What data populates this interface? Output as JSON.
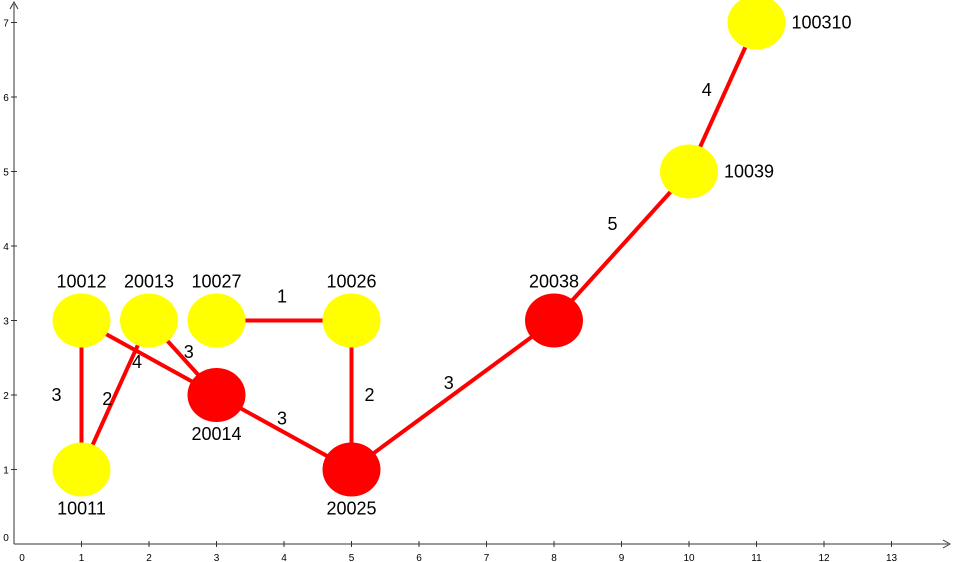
{
  "axes": {
    "x_ticks": [
      "0",
      "1",
      "2",
      "3",
      "4",
      "5",
      "6",
      "7",
      "8",
      "9",
      "10",
      "11",
      "12",
      "13"
    ],
    "y_ticks": [
      "0",
      "1",
      "2",
      "3",
      "4",
      "5",
      "6",
      "7"
    ]
  },
  "colors": {
    "edge": "#ff0000",
    "axis": "#333333",
    "yellow_node": "#ffff00",
    "red_node": "#ff0000"
  },
  "graph": {
    "nodes": [
      {
        "id": "10012",
        "label": "10012",
        "x": 1,
        "y": 3,
        "color": "yellow",
        "label_pos": "above"
      },
      {
        "id": "20013",
        "label": "20013",
        "x": 2,
        "y": 3,
        "color": "yellow",
        "label_pos": "above"
      },
      {
        "id": "10027",
        "label": "10027",
        "x": 3,
        "y": 3,
        "color": "yellow",
        "label_pos": "above"
      },
      {
        "id": "10026",
        "label": "10026",
        "x": 5,
        "y": 3,
        "color": "yellow",
        "label_pos": "above"
      },
      {
        "id": "20014",
        "label": "20014",
        "x": 3,
        "y": 2,
        "color": "red",
        "label_pos": "below"
      },
      {
        "id": "10011",
        "label": "10011",
        "x": 1,
        "y": 1,
        "color": "yellow",
        "label_pos": "below"
      },
      {
        "id": "20025",
        "label": "20025",
        "x": 5,
        "y": 1,
        "color": "red",
        "label_pos": "below"
      },
      {
        "id": "20038",
        "label": "20038",
        "x": 8,
        "y": 3,
        "color": "red",
        "label_pos": "above"
      },
      {
        "id": "10039",
        "label": "10039",
        "x": 10,
        "y": 5,
        "color": "yellow",
        "label_pos": "right"
      },
      {
        "id": "100310",
        "label": "100310",
        "x": 11,
        "y": 7,
        "color": "yellow",
        "label_pos": "right"
      }
    ],
    "edges": [
      {
        "from": "10012",
        "to": "10011",
        "weight": "3"
      },
      {
        "from": "20013",
        "to": "10011",
        "weight": "2"
      },
      {
        "from": "10012",
        "to": "20014",
        "weight": "4"
      },
      {
        "from": "20013",
        "to": "20014",
        "weight": "3"
      },
      {
        "from": "10027",
        "to": "10026",
        "weight": "1"
      },
      {
        "from": "20014",
        "to": "20025",
        "weight": "3"
      },
      {
        "from": "10026",
        "to": "20025",
        "weight": "2"
      },
      {
        "from": "20025",
        "to": "20038",
        "weight": "3"
      },
      {
        "from": "20038",
        "to": "10039",
        "weight": "5"
      },
      {
        "from": "10039",
        "to": "100310",
        "weight": "4"
      }
    ]
  }
}
